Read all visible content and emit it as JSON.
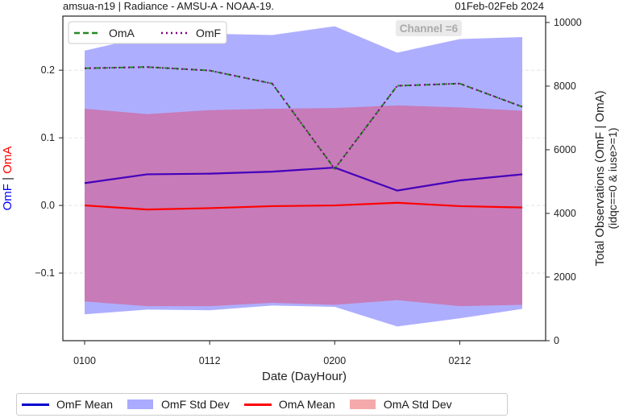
{
  "header": {
    "left_title": "amsua-n19  |  Radiance - AMSU-A - NOAA-19.",
    "right_title": "01Feb-02Feb 2024"
  },
  "colors": {
    "omf": "#0000ff",
    "omf_mean": "#4400bb",
    "omf_std": "#aaaaff",
    "oma": "#ff0000",
    "oma_std": "#c878b4",
    "count_omf": "#228b22",
    "count_oma": "#800080"
  },
  "chart_data": {
    "type": "line",
    "xlabel": "Date (DayHour)",
    "x": [
      "0100",
      "0106",
      "0112",
      "0118",
      "0200",
      "0206",
      "0212",
      "0218"
    ],
    "xticks": [
      "0100",
      "0112",
      "0200",
      "0212"
    ],
    "ylabel_left": {
      "omf": "OmF",
      "sep": "|",
      "oma": "OmA"
    },
    "ylim_left": [
      -0.2,
      0.28
    ],
    "yticks_left": [
      "0.2",
      "0.1",
      "0.0",
      "−0.1"
    ],
    "ylabel_right_line1": "Total Observations (OmF | OmA)",
    "ylabel_right_line2": "(idqc==0 & iuse>=1)",
    "ylim_right": [
      0,
      10200
    ],
    "yticks_right": [
      "10000",
      "8000",
      "6000",
      "4000",
      "2000",
      "0"
    ],
    "annotation": "Channel =6",
    "grid": true,
    "series": [
      {
        "name": "OmF Mean",
        "axis": "left",
        "values": [
          0.033,
          0.046,
          0.047,
          0.05,
          0.056,
          0.022,
          0.037,
          0.046
        ]
      },
      {
        "name": "OmF Std Dev",
        "axis": "left",
        "band_upper": [
          0.229,
          0.25,
          0.254,
          0.252,
          0.265,
          0.226,
          0.246,
          0.249
        ],
        "band_lower": [
          -0.161,
          -0.154,
          -0.155,
          -0.148,
          -0.15,
          -0.179,
          -0.167,
          -0.153
        ]
      },
      {
        "name": "OmA Mean",
        "axis": "left",
        "values": [
          0.0,
          -0.006,
          -0.004,
          -0.001,
          0.0,
          0.004,
          -0.001,
          -0.003
        ]
      },
      {
        "name": "OmA Std Dev",
        "axis": "left",
        "band_upper": [
          0.143,
          0.135,
          0.141,
          0.143,
          0.144,
          0.148,
          0.145,
          0.14
        ],
        "band_lower": [
          -0.142,
          -0.149,
          -0.149,
          -0.144,
          -0.147,
          -0.14,
          -0.149,
          -0.147
        ]
      },
      {
        "name": "OmA",
        "axis": "right",
        "values": [
          8560,
          8600,
          8490,
          8080,
          5400,
          8010,
          8080,
          7350
        ]
      },
      {
        "name": "OmF",
        "axis": "right",
        "values": [
          8560,
          8600,
          8490,
          8080,
          5400,
          8010,
          8080,
          7350
        ]
      }
    ],
    "legend_top": [
      {
        "label": "OmA",
        "style": "dashed"
      },
      {
        "label": "OmF",
        "style": "dotted"
      }
    ],
    "legend_top_placement": "top-left",
    "legend_bottom_placement": "bottom"
  },
  "bottom_legend": [
    {
      "label": "OmF Mean",
      "kind": "line"
    },
    {
      "label": "OmF Std Dev",
      "kind": "patch"
    },
    {
      "label": "OmA Mean",
      "kind": "line"
    },
    {
      "label": "OmA Std Dev",
      "kind": "patch"
    }
  ]
}
